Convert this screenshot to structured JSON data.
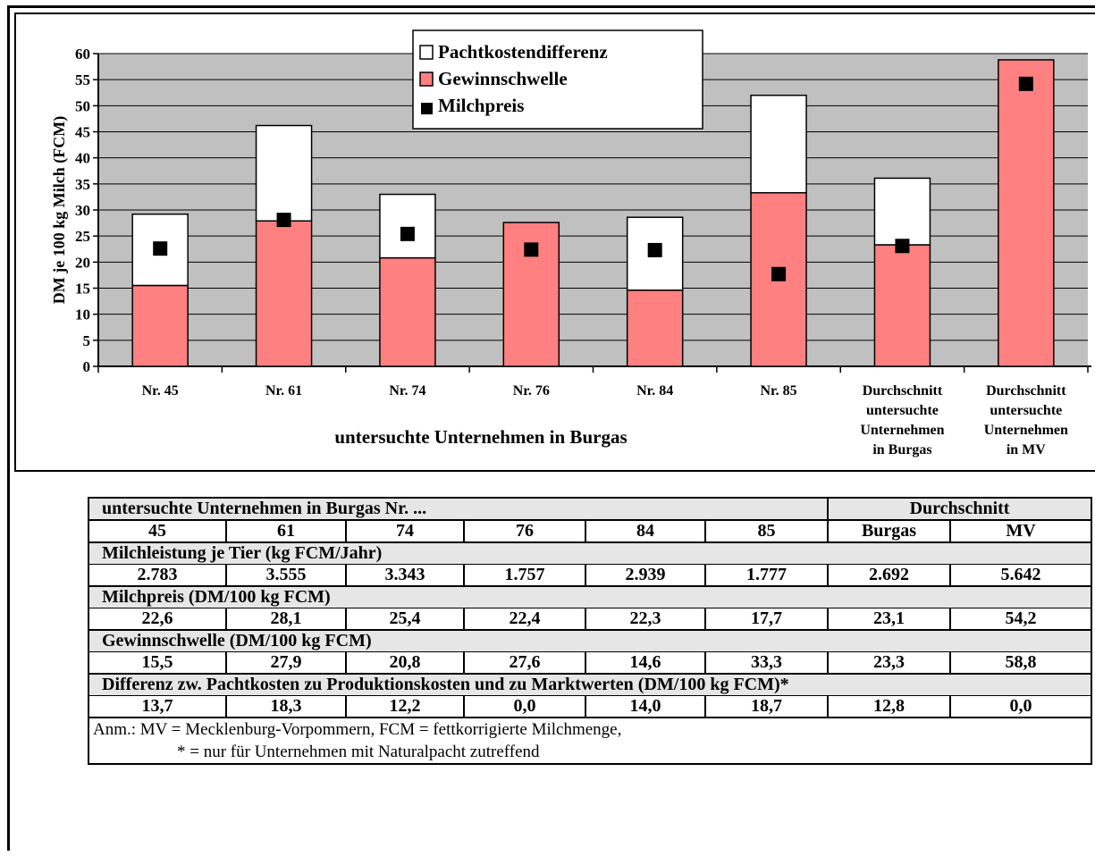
{
  "chart_data": {
    "type": "bar",
    "stacked": true,
    "categories": [
      [
        "Nr. 45"
      ],
      [
        "Nr. 61"
      ],
      [
        "Nr. 74"
      ],
      [
        "Nr. 76"
      ],
      [
        "Nr. 84"
      ],
      [
        "Nr. 85"
      ],
      [
        "Durchschnitt",
        "untersuchte",
        "Unternehmen",
        "in Burgas"
      ],
      [
        "Durchschnitt",
        "untersuchte",
        "Unternehmen",
        "in MV"
      ]
    ],
    "series": [
      {
        "name": "Gewinnschwelle",
        "type": "bar",
        "color": "#ff8080",
        "values": [
          15.5,
          27.9,
          20.8,
          27.6,
          14.6,
          33.3,
          23.3,
          58.8
        ]
      },
      {
        "name": "Pachtkostendifferenz",
        "type": "bar",
        "color": "#ffffff",
        "values": [
          13.7,
          18.3,
          12.2,
          0.0,
          14.0,
          18.7,
          12.8,
          0.0
        ]
      },
      {
        "name": "Milchpreis",
        "type": "marker",
        "color": "#000000",
        "values": [
          22.6,
          28.1,
          25.4,
          22.4,
          22.3,
          17.7,
          23.1,
          54.2
        ]
      }
    ],
    "legend_order": [
      "Pachtkostendifferenz",
      "Gewinnschwelle",
      "Milchpreis"
    ],
    "legend_position": "top-center",
    "xlabel": "untersuchte Unternehmen in Burgas",
    "ylabel": "DM je 100 kg Milch (FCM)",
    "ylim": [
      0,
      60
    ],
    "yticks": [
      0,
      5,
      10,
      15,
      20,
      25,
      30,
      35,
      40,
      45,
      50,
      55,
      60
    ],
    "grid": true,
    "background": "#c0c0c0"
  },
  "table": {
    "group_header": "untersuchte Unternehmen in Burgas Nr. ...",
    "avg_header": "Durchschnitt",
    "columns": [
      "45",
      "61",
      "74",
      "76",
      "84",
      "85",
      "Burgas",
      "MV"
    ],
    "sections": [
      {
        "title": "Milchleistung je Tier (kg FCM/Jahr)",
        "values": [
          "2.783",
          "3.555",
          "3.343",
          "1.757",
          "2.939",
          "1.777",
          "2.692",
          "5.642"
        ]
      },
      {
        "title": "Milchpreis (DM/100 kg FCM)",
        "values": [
          "22,6",
          "28,1",
          "25,4",
          "22,4",
          "22,3",
          "17,7",
          "23,1",
          "54,2"
        ]
      },
      {
        "title": "Gewinnschwelle (DM/100 kg FCM)",
        "values": [
          "15,5",
          "27,9",
          "20,8",
          "27,6",
          "14,6",
          "33,3",
          "23,3",
          "58,8"
        ]
      },
      {
        "title": "Differenz zw. Pachtkosten zu Produktionskosten und zu Marktwerten (DM/100 kg FCM)*",
        "values": [
          "13,7",
          "18,3",
          "12,2",
          "0,0",
          "14,0",
          "18,7",
          "12,8",
          "0,0"
        ]
      }
    ],
    "note_line1": "Anm.:   MV = Mecklenburg-Vorpommern, FCM = fettkorrigierte Milchmenge,",
    "note_line2": "* = nur für Unternehmen mit Naturalpacht zutreffend"
  }
}
